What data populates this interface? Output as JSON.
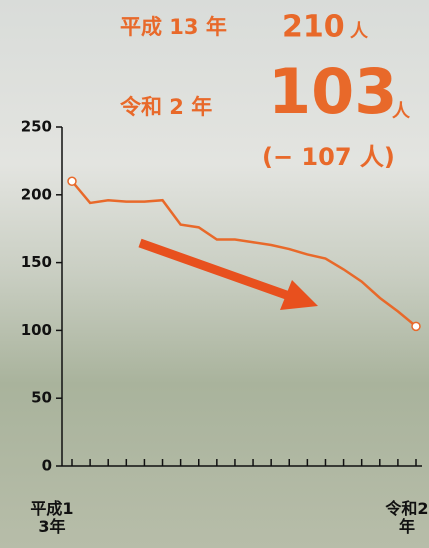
{
  "chart_data": {
    "type": "line",
    "annotations": {
      "from_label": "平成 13 年",
      "from_value": "210",
      "from_unit": "人",
      "to_label": "令和 2 年",
      "to_value": "103",
      "to_unit": "人",
      "change": "(− 107 人)"
    },
    "categories": [
      "平成13年",
      null,
      null,
      null,
      null,
      null,
      null,
      null,
      null,
      null,
      null,
      null,
      null,
      null,
      null,
      null,
      null,
      null,
      null,
      "令和2年"
    ],
    "values": [
      210,
      194,
      196,
      195,
      195,
      196,
      178,
      176,
      167,
      167,
      165,
      163,
      160,
      156,
      153,
      145,
      136,
      124,
      114,
      103
    ],
    "color": "#e8692a",
    "ylim": [
      0,
      250
    ],
    "yticks": [
      0,
      50,
      100,
      150,
      200,
      250
    ]
  }
}
